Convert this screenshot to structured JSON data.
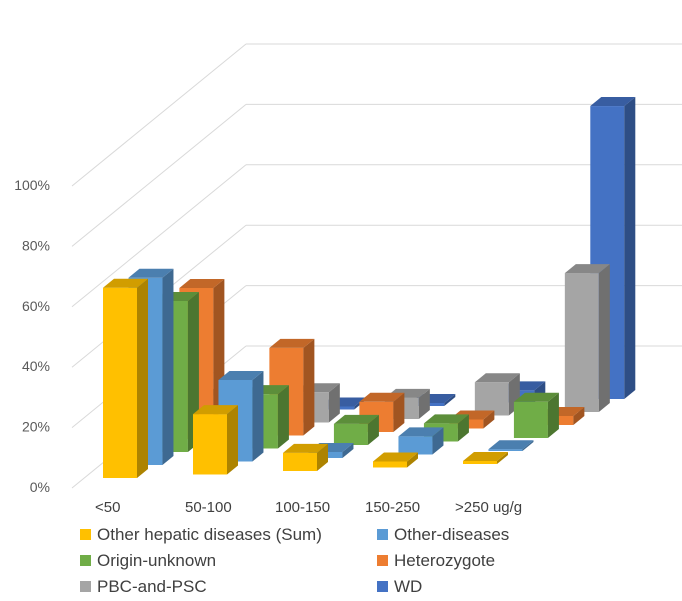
{
  "chart_data": {
    "type": "bar",
    "variant": "3d-column",
    "title": "",
    "xlabel": "",
    "ylabel": "",
    "ylim": [
      0,
      100
    ],
    "y_ticks": [
      "0%",
      "20%",
      "40%",
      "60%",
      "80%",
      "100%"
    ],
    "categories": [
      "<50",
      "50-100",
      "100-150",
      "150-250",
      ">250 ug/g"
    ],
    "legend_position": "bottom",
    "grid": true,
    "series": [
      {
        "name": "Other hepatic diseases (Sum)",
        "color": "#FFC000",
        "values": [
          63,
          20,
          6,
          2,
          1
        ]
      },
      {
        "name": "Other-diseases",
        "color": "#5B9BD5",
        "values": [
          62,
          27,
          2,
          6,
          0
        ]
      },
      {
        "name": "Origin-unknown",
        "color": "#70AD47",
        "values": [
          50,
          18,
          7,
          6,
          12
        ]
      },
      {
        "name": "Heterozygote",
        "color": "#ED7D31",
        "values": [
          50,
          29,
          10,
          3,
          3
        ]
      },
      {
        "name": "PBC-and-PSC",
        "color": "#A5A5A5",
        "values": [
          10,
          10,
          7,
          11,
          46
        ]
      },
      {
        "name": "WD",
        "color": "#4472C4",
        "values": [
          1,
          1,
          1,
          4,
          97
        ]
      }
    ]
  }
}
